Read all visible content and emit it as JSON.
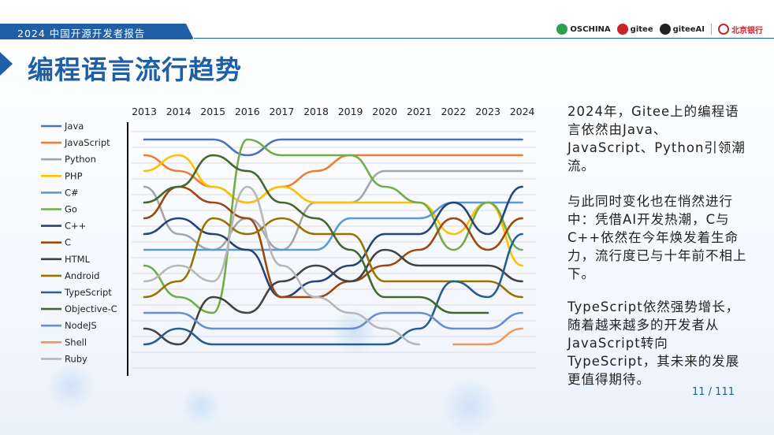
{
  "header": {
    "report_label": "2024 中国开源开发者报告"
  },
  "logos": [
    "OSCHINA",
    "gitee",
    "giteeAI",
    "北京银行"
  ],
  "page_title": "编程语言流行趋势",
  "side_text": {
    "p1": "2024年，Gitee上的编程语言依然由Java、JavaScript、Python引领潮流。",
    "p2": "与此同时变化也在悄然进行中：凭借AI开发热潮，C与C++依然在今年焕发着生命力，流行度已与十年前不相上下。",
    "p3": "TypeScript依然强势增长，随着越来越多的开发者从JavaScript转向TypeScript，其未来的发展更值得期待。"
  },
  "page_number": "11 / 111",
  "chart_data": {
    "type": "line",
    "subtype": "bump",
    "y_axis": "rank (1 = top)",
    "ylim": [
      1,
      15
    ],
    "grid": true,
    "legend_position": "left",
    "categories": [
      "2013",
      "2014",
      "2015",
      "2016",
      "2017",
      "2018",
      "2019",
      "2020",
      "2021",
      "2022",
      "2023",
      "2024"
    ],
    "series": [
      {
        "name": "Java",
        "color": "#4a72c4",
        "ranks": [
          1,
          1,
          1,
          2,
          1,
          1,
          1,
          1,
          1,
          1,
          1,
          1
        ]
      },
      {
        "name": "JavaScript",
        "color": "#ed7d31",
        "ranks": [
          2,
          3,
          4,
          5,
          4,
          3,
          2,
          2,
          2,
          2,
          2,
          2
        ]
      },
      {
        "name": "Python",
        "color": "#a5a5a5",
        "ranks": [
          4,
          7,
          8,
          6,
          8,
          5,
          5,
          3,
          3,
          3,
          3,
          3
        ]
      },
      {
        "name": "PHP",
        "color": "#ffc000",
        "ranks": [
          3,
          2,
          4,
          5,
          4,
          5,
          5,
          5,
          5,
          7,
          5,
          9
        ]
      },
      {
        "name": "C#",
        "color": "#5b9bd5",
        "ranks": [
          8,
          8,
          8,
          8,
          8,
          8,
          6,
          6,
          6,
          5,
          5,
          5
        ]
      },
      {
        "name": "Go",
        "color": "#70ad47",
        "ranks": [
          9,
          11,
          12,
          1,
          2,
          2,
          2,
          4,
          5,
          8,
          5,
          8
        ]
      },
      {
        "name": "C++",
        "color": "#264478",
        "ranks": [
          7,
          6,
          7,
          8,
          11,
          10,
          9,
          7,
          7,
          5,
          7,
          4
        ]
      },
      {
        "name": "C",
        "color": "#9e480e",
        "ranks": [
          6,
          4,
          5,
          6,
          11,
          11,
          10,
          9,
          8,
          6,
          8,
          6
        ]
      },
      {
        "name": "HTML",
        "color": "#424242",
        "ranks": [
          13,
          14,
          11,
          12,
          10,
          9,
          10,
          8,
          9,
          9,
          9,
          10
        ]
      },
      {
        "name": "Android",
        "color": "#997300",
        "ranks": [
          11,
          10,
          6,
          7,
          6,
          7,
          7,
          10,
          10,
          10,
          10,
          11
        ]
      },
      {
        "name": "TypeScript",
        "color": "#255e91",
        "ranks": [
          14,
          13,
          14,
          14,
          14,
          14,
          14,
          14,
          13,
          10,
          11,
          7
        ]
      },
      {
        "name": "Objective-C",
        "color": "#43682b",
        "ranks": [
          5,
          4,
          2,
          3,
          5,
          6,
          8,
          11,
          11,
          12,
          12,
          null
        ]
      },
      {
        "name": "NodeJS",
        "color": "#698ed0",
        "ranks": [
          12,
          12,
          13,
          13,
          13,
          13,
          13,
          12,
          12,
          13,
          13,
          12
        ]
      },
      {
        "name": "Shell",
        "color": "#f1975a",
        "ranks": [
          null,
          null,
          null,
          null,
          null,
          null,
          null,
          null,
          null,
          14,
          14,
          13
        ]
      },
      {
        "name": "Ruby",
        "color": "#b7b7b7",
        "ranks": [
          10,
          9,
          10,
          4,
          9,
          11,
          12,
          13,
          14,
          null,
          null,
          null
        ]
      }
    ]
  }
}
